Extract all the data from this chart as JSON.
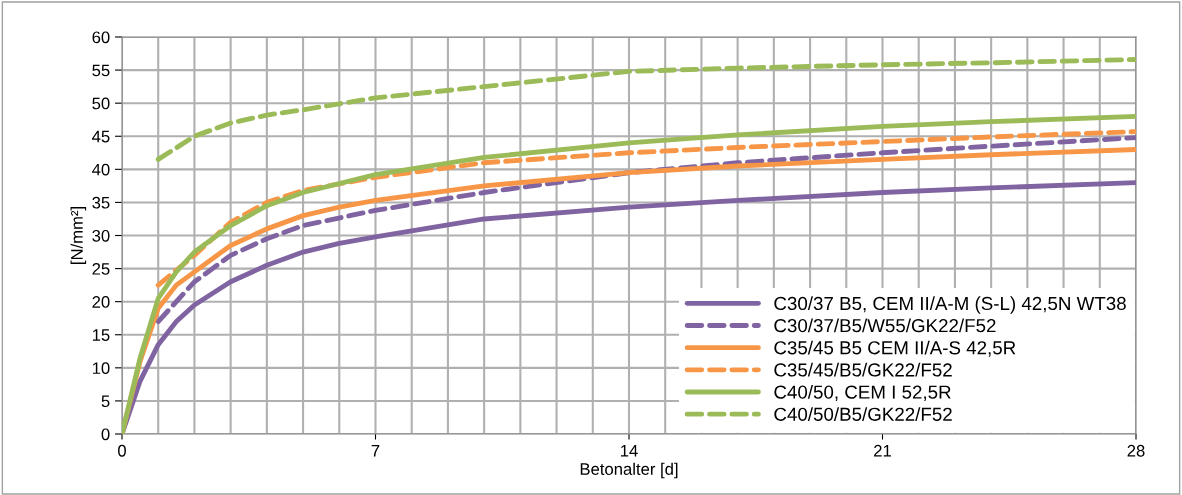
{
  "chart_data": {
    "type": "line",
    "xlabel": "Betonalter [d]",
    "ylabel": "[N/mm²]",
    "xlim": [
      0,
      28
    ],
    "ylim": [
      0,
      60
    ],
    "xticks": [
      0,
      {
        "value": 1,
        "label": null
      },
      {
        "value": 2,
        "label": null
      },
      {
        "value": 3,
        "label": null
      },
      {
        "value": 4,
        "label": null
      },
      {
        "value": 5,
        "label": null
      },
      {
        "value": 6,
        "label": null
      },
      7,
      {
        "value": 8,
        "label": null
      },
      {
        "value": 9,
        "label": null
      },
      {
        "value": 10,
        "label": null
      },
      {
        "value": 11,
        "label": null
      },
      {
        "value": 12,
        "label": null
      },
      {
        "value": 13,
        "label": null
      },
      14,
      {
        "value": 15,
        "label": null
      },
      {
        "value": 16,
        "label": null
      },
      {
        "value": 17,
        "label": null
      },
      {
        "value": 18,
        "label": null
      },
      {
        "value": 19,
        "label": null
      },
      {
        "value": 20,
        "label": null
      },
      21,
      {
        "value": 22,
        "label": null
      },
      {
        "value": 23,
        "label": null
      },
      {
        "value": 24,
        "label": null
      },
      {
        "value": 25,
        "label": null
      },
      {
        "value": 26,
        "label": null
      },
      {
        "value": 27,
        "label": null
      },
      28
    ],
    "yticks": [
      0,
      5,
      10,
      15,
      20,
      25,
      30,
      35,
      40,
      45,
      50,
      55,
      60
    ],
    "grid": true,
    "legend": "bottom right",
    "marker": "none",
    "series": [
      {
        "name": "C30/37 B5, CEM II/A-M (S-L) 42,5N WT38",
        "color": "#8064a2",
        "line_style": "solid",
        "x": [
          0,
          0.5,
          1,
          1.5,
          2,
          3,
          4,
          5,
          6,
          7,
          10,
          14,
          17,
          21,
          24,
          28
        ],
        "values": [
          0,
          8,
          13.5,
          17,
          19.5,
          23,
          25.5,
          27.5,
          28.8,
          29.8,
          32.5,
          34.3,
          35.3,
          36.5,
          37.2,
          38
        ]
      },
      {
        "name": "C30/37/B5/W55/GK22/F52",
        "color": "#8064a2",
        "line_style": "dashed",
        "x": [
          1,
          2,
          3,
          4,
          5,
          7,
          10,
          14,
          17,
          21,
          24,
          28
        ],
        "values": [
          17,
          23,
          27,
          29.5,
          31.5,
          33.8,
          36.5,
          39.5,
          41,
          42.5,
          43.5,
          44.8
        ]
      },
      {
        "name": "C35/45 B5 CEM II/A-S 42,5R",
        "color": "#f79646",
        "line_style": "solid",
        "x": [
          0,
          0.5,
          1,
          1.5,
          2,
          3,
          4,
          5,
          6,
          7,
          10,
          14,
          17,
          21,
          24,
          28
        ],
        "values": [
          0,
          11,
          19,
          22.5,
          24.5,
          28.5,
          31,
          33,
          34.3,
          35.3,
          37.5,
          39.5,
          40.5,
          41.5,
          42.2,
          43
        ]
      },
      {
        "name": "C35/45/B5/GK22/F52",
        "color": "#f79646",
        "line_style": "dashed",
        "x": [
          1,
          2,
          3,
          4,
          5,
          7,
          10,
          14,
          17,
          21,
          24,
          28
        ],
        "values": [
          22.5,
          27,
          32,
          35,
          36.8,
          38.8,
          41,
          42.5,
          43.3,
          44.2,
          44.9,
          45.7
        ]
      },
      {
        "name": "C40/50, CEM I 52,5R",
        "color": "#9bbb59",
        "line_style": "solid",
        "x": [
          0,
          0.5,
          1,
          1.5,
          2,
          3,
          4,
          5,
          7,
          10,
          14,
          17,
          21,
          24,
          28
        ],
        "values": [
          0,
          11.5,
          20.5,
          24.5,
          27.5,
          31.5,
          34.5,
          36.5,
          39.2,
          41.8,
          44,
          45.2,
          46.5,
          47.2,
          48
        ]
      },
      {
        "name": "C40/50/B5/GK22/F52",
        "color": "#9bbb59",
        "line_style": "dashed",
        "x": [
          1,
          2,
          3,
          4,
          5,
          7,
          10,
          14,
          17,
          21,
          24,
          28
        ],
        "values": [
          41.5,
          45,
          47,
          48.2,
          49,
          50.8,
          52.5,
          54.8,
          55.3,
          55.8,
          56.1,
          56.6
        ]
      }
    ]
  }
}
